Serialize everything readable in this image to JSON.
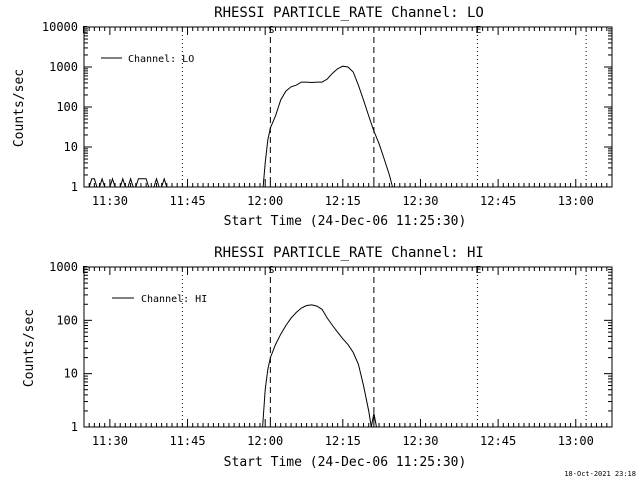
{
  "stamp": "18-Oct-2021 23:18",
  "chart_data": [
    {
      "type": "line",
      "title": "RHESSI PARTICLE_RATE Channel: LO",
      "xlabel": "Start Time (24-Dec-06 11:25:30)",
      "ylabel": "Counts/sec",
      "scale": "log",
      "ylim": [
        1,
        10000
      ],
      "xlim": [
        "11:25",
        "13:07"
      ],
      "yticks": [
        {
          "value": 1,
          "label": "1"
        },
        {
          "value": 10,
          "label": "10"
        },
        {
          "value": 100,
          "label": "100"
        },
        {
          "value": 1000,
          "label": "1000"
        },
        {
          "value": 10000,
          "label": "10000"
        }
      ],
      "xticks": [
        {
          "value": "11:30",
          "label": "11:30"
        },
        {
          "value": "11:45",
          "label": "11:45"
        },
        {
          "value": "12:00",
          "label": "12:00"
        },
        {
          "value": "12:15",
          "label": "12:15"
        },
        {
          "value": "12:30",
          "label": "12:30"
        },
        {
          "value": "12:45",
          "label": "12:45"
        },
        {
          "value": "13:00",
          "label": "13:00"
        }
      ],
      "legend": {
        "entry": "Channel: LO",
        "placement": "top-left"
      },
      "markers": [
        {
          "time": "11:25",
          "label": "E",
          "style": "dotted"
        },
        {
          "time": "11:44",
          "label": "",
          "style": "dotted"
        },
        {
          "time": "12:01",
          "label": "S",
          "style": "dashed"
        },
        {
          "time": "12:21",
          "label": "",
          "style": "dashed"
        },
        {
          "time": "12:41",
          "label": "E",
          "style": "dotted"
        },
        {
          "time": "13:02",
          "label": "",
          "style": "dotted"
        }
      ],
      "series": [
        {
          "points": [
            [
              "11:26",
              1
            ],
            [
              "11:26.5",
              1.6
            ],
            [
              "11:27",
              1.6
            ],
            [
              "11:27.5",
              1
            ],
            [
              "11:28",
              1
            ],
            [
              "11:28.5",
              1.6
            ],
            [
              "11:29",
              1
            ],
            [
              "11:30",
              1
            ],
            [
              "11:30.5",
              1.6
            ],
            [
              "11:31",
              1
            ],
            [
              "11:32",
              1
            ],
            [
              "11:32.5",
              1.6
            ],
            [
              "11:33",
              1
            ],
            [
              "11:33.5",
              1
            ],
            [
              "11:34",
              1.6
            ],
            [
              "11:34.5",
              1
            ],
            [
              "11:35",
              1
            ],
            [
              "11:35.5",
              1.6
            ],
            [
              "11:37",
              1.6
            ],
            [
              "11:37.5",
              1
            ],
            [
              "11:38.5",
              1
            ],
            [
              "11:39",
              1.6
            ],
            [
              "11:39.5",
              1
            ],
            [
              "11:40",
              1
            ],
            [
              "11:40.5",
              1.6
            ],
            [
              "11:41",
              1
            ],
            [
              "11:59.6",
              1
            ],
            [
              "12:00",
              4
            ],
            [
              "12:00.5",
              15
            ],
            [
              "12:01",
              30
            ],
            [
              "12:02",
              60
            ],
            [
              "12:03",
              150
            ],
            [
              "12:04",
              250
            ],
            [
              "12:05",
              320
            ],
            [
              "12:06",
              350
            ],
            [
              "12:07",
              420
            ],
            [
              "12:08",
              420
            ],
            [
              "12:09",
              410
            ],
            [
              "12:10",
              420
            ],
            [
              "12:11",
              420
            ],
            [
              "12:12",
              500
            ],
            [
              "12:13",
              700
            ],
            [
              "12:14",
              900
            ],
            [
              "12:15",
              1050
            ],
            [
              "12:16",
              1000
            ],
            [
              "12:17",
              750
            ],
            [
              "12:18",
              350
            ],
            [
              "12:19",
              150
            ],
            [
              "12:20",
              60
            ],
            [
              "12:21",
              25
            ],
            [
              "12:22",
              12
            ],
            [
              "12:23",
              5
            ],
            [
              "12:24",
              2
            ],
            [
              "12:24.6",
              1
            ]
          ]
        }
      ]
    },
    {
      "type": "line",
      "title": "RHESSI PARTICLE_RATE Channel: HI",
      "xlabel": "Start Time (24-Dec-06 11:25:30)",
      "ylabel": "Counts/sec",
      "scale": "log",
      "ylim": [
        1,
        1000
      ],
      "xlim": [
        "11:25",
        "13:07"
      ],
      "yticks": [
        {
          "value": 1,
          "label": "1"
        },
        {
          "value": 10,
          "label": "10"
        },
        {
          "value": 100,
          "label": "100"
        },
        {
          "value": 1000,
          "label": "1000"
        }
      ],
      "xticks": [
        {
          "value": "11:30",
          "label": "11:30"
        },
        {
          "value": "11:45",
          "label": "11:45"
        },
        {
          "value": "12:00",
          "label": "12:00"
        },
        {
          "value": "12:15",
          "label": "12:15"
        },
        {
          "value": "12:30",
          "label": "12:30"
        },
        {
          "value": "12:45",
          "label": "12:45"
        },
        {
          "value": "13:00",
          "label": "13:00"
        }
      ],
      "legend": {
        "entry": "Channel: HI",
        "placement": "top-left"
      },
      "markers": [
        {
          "time": "11:25",
          "label": "E",
          "style": "dotted"
        },
        {
          "time": "11:44",
          "label": "",
          "style": "dotted"
        },
        {
          "time": "12:01",
          "label": "S",
          "style": "dashed"
        },
        {
          "time": "12:21",
          "label": "",
          "style": "dashed"
        },
        {
          "time": "12:41",
          "label": "E",
          "style": "dotted"
        },
        {
          "time": "13:02",
          "label": "",
          "style": "dotted"
        }
      ],
      "series": [
        {
          "points": [
            [
              "11:59.5",
              1
            ],
            [
              "12:00",
              5
            ],
            [
              "12:00.5",
              12
            ],
            [
              "12:01",
              20
            ],
            [
              "12:02",
              35
            ],
            [
              "12:03",
              55
            ],
            [
              "12:04",
              80
            ],
            [
              "12:05",
              110
            ],
            [
              "12:06",
              140
            ],
            [
              "12:07",
              170
            ],
            [
              "12:08",
              190
            ],
            [
              "12:09",
              195
            ],
            [
              "12:10",
              185
            ],
            [
              "12:11",
              160
            ],
            [
              "12:12",
              110
            ],
            [
              "12:13",
              80
            ],
            [
              "12:14",
              60
            ],
            [
              "12:15",
              45
            ],
            [
              "12:16",
              35
            ],
            [
              "12:17",
              25
            ],
            [
              "12:18",
              15
            ],
            [
              "12:19",
              6
            ],
            [
              "12:20",
              2
            ],
            [
              "12:20.5",
              1
            ],
            [
              "12:21",
              1.8
            ],
            [
              "12:21.5",
              1
            ]
          ]
        }
      ]
    }
  ]
}
